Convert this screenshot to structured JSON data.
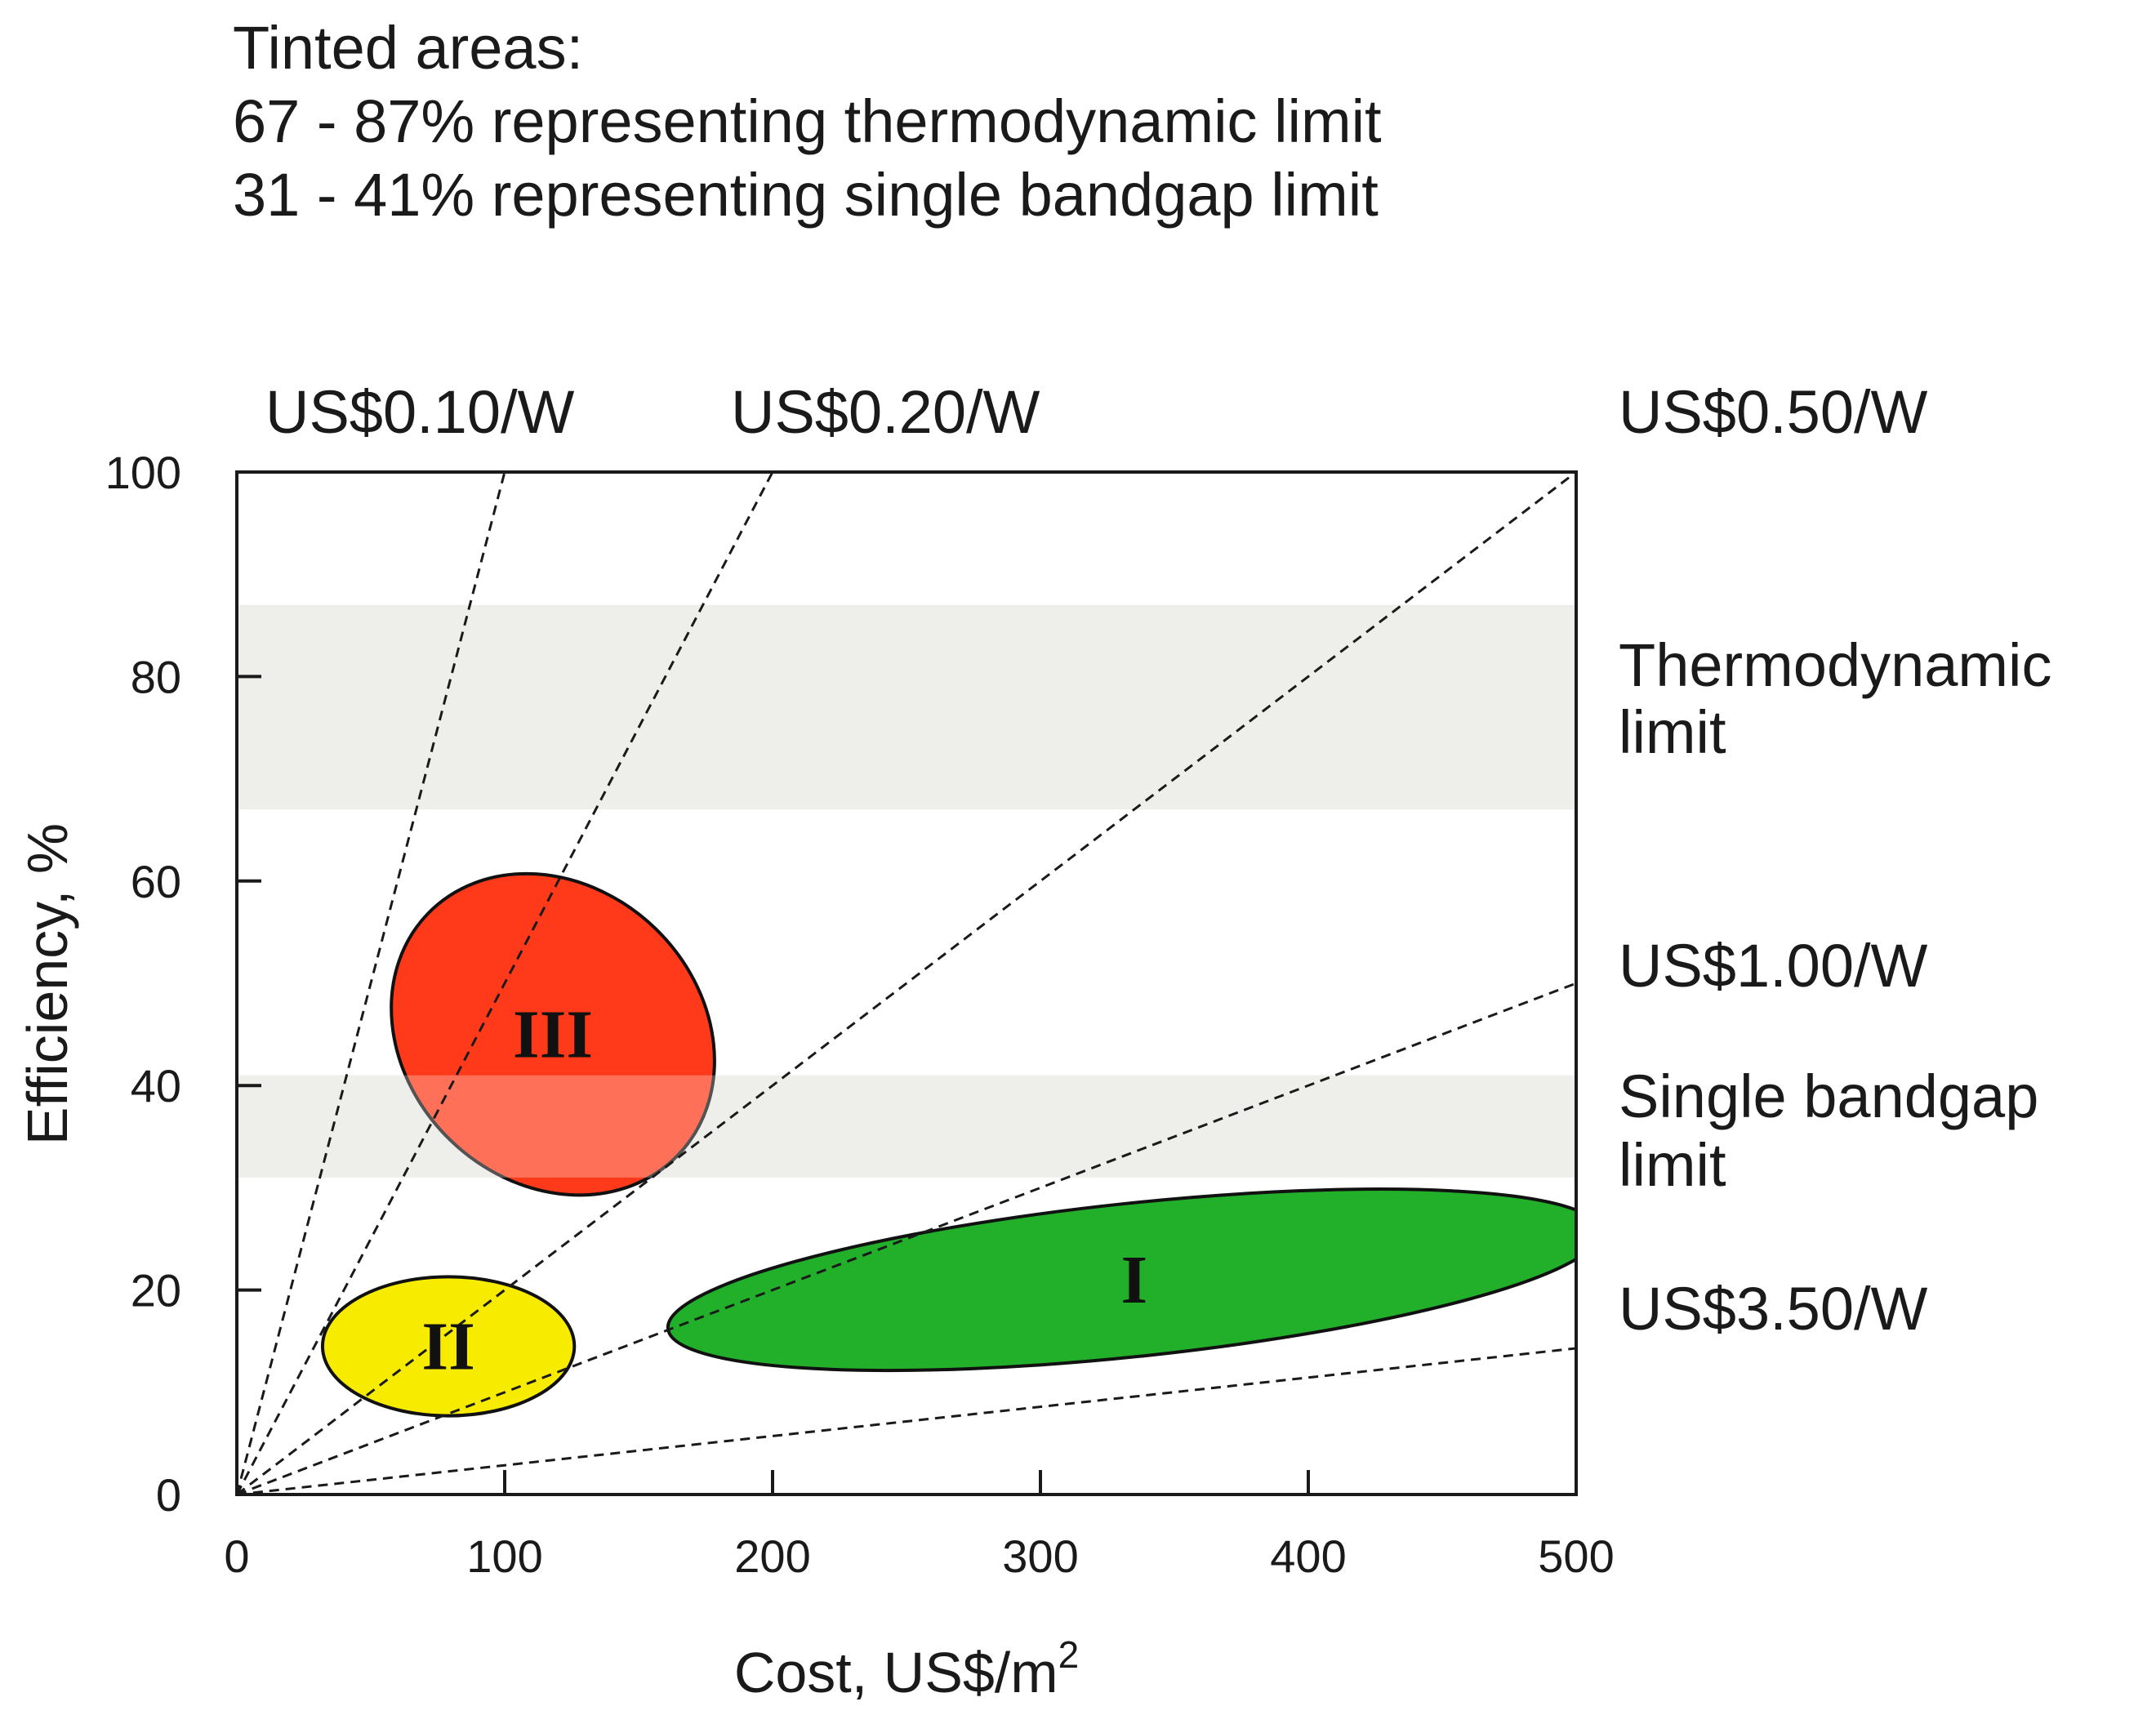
{
  "header_note": {
    "line1": "Tinted areas:",
    "line2": "67 - 87% representing thermodynamic limit",
    "line3": "31 - 41% representing single bandgap limit"
  },
  "chart_data": {
    "type": "scatter",
    "xlabel": "Cost, US$/m",
    "xlabel_sup": "2",
    "ylabel": "Efficiency, %",
    "xlim": [
      0,
      500
    ],
    "ylim": [
      0,
      100
    ],
    "xticks": [
      0,
      100,
      200,
      300,
      400,
      500
    ],
    "yticks": [
      0,
      20,
      40,
      60,
      80,
      100
    ],
    "grid": false,
    "tinted_bands": [
      {
        "label": "Thermodynamic",
        "label2": "limit",
        "y_range": [
          67,
          87
        ],
        "color": "#e8e8e4"
      },
      {
        "label": "Single bandgap",
        "label2": "limit",
        "y_range": [
          31,
          41
        ],
        "color": "#e8e8e4"
      }
    ],
    "cost_lines": [
      {
        "label": "US$0.10/W",
        "slope_pct_per_cost": 1.0
      },
      {
        "label": "US$0.20/W",
        "slope_pct_per_cost": 0.5
      },
      {
        "label": "US$0.50/W",
        "slope_pct_per_cost": 0.2
      },
      {
        "label": "US$1.00/W",
        "slope_pct_per_cost": 0.1
      },
      {
        "label": "US$3.50/W",
        "slope_pct_per_cost": 0.0286
      }
    ],
    "regions": [
      {
        "label": "I",
        "color": "#22b02a",
        "cx": 335,
        "cy": 21,
        "rx": 175,
        "ry": 7.5,
        "angle_deg": -6
      },
      {
        "label": "II",
        "color": "#f7ec00",
        "cx": 79,
        "cy": 14.5,
        "rx": 47,
        "ry": 6.8,
        "angle_deg": 0
      },
      {
        "label": "III",
        "color": "#ff3a1a",
        "cx": 118,
        "cy": 45,
        "rx": 55,
        "ry": 17,
        "angle_deg": -46
      }
    ]
  }
}
